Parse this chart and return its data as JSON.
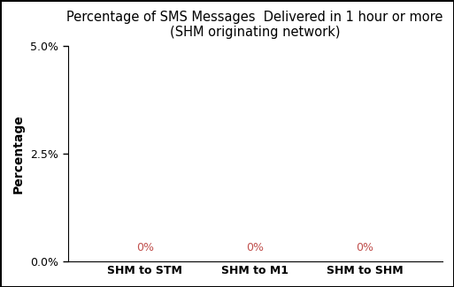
{
  "title_line1": "Percentage of SMS Messages  Delivered in 1 hour or more",
  "title_line2": "(SHM originating network)",
  "categories": [
    "SHM to STM",
    "SHM to M1",
    "SHM to SHM"
  ],
  "values": [
    0.0,
    0.0,
    0.0
  ],
  "bar_color": "#4472c4",
  "ylabel": "Percentage",
  "ylim": [
    0.0,
    0.05
  ],
  "yticks": [
    0.0,
    0.025,
    0.05
  ],
  "ytick_labels": [
    "0.0%",
    "2.5%",
    "5.0%"
  ],
  "bar_width": 0.5,
  "label_color": "#c0504d",
  "background_color": "#ffffff",
  "title_fontsize": 10.5,
  "axis_label_fontsize": 10,
  "tick_fontsize": 9,
  "bar_label_fontsize": 9,
  "border_color": "#000000"
}
